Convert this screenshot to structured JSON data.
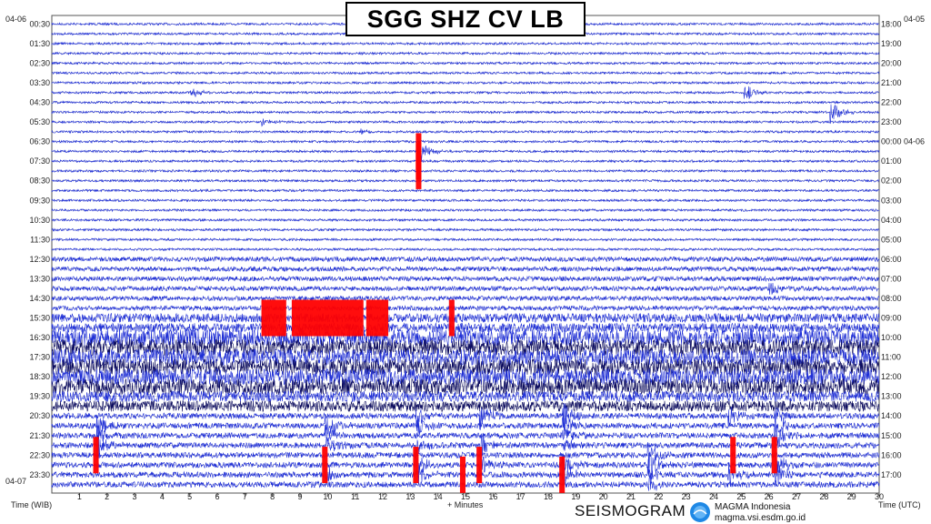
{
  "title": "SGG SHZ CV LB",
  "left_top_date": "04-06",
  "left_bottom_date": "04-07",
  "right_top_date": "04-05",
  "footer": {
    "left_axis_label": "Time (WIB)",
    "right_axis_label": "Time (UTC)",
    "x_axis_label": "+ Minutes",
    "brand": "SEISMOGRAM",
    "org_name": "MAGMA Indonesia",
    "org_url": "magma.vsi.esdm.go.id"
  },
  "colors": {
    "trace_blue": "#1f2fd6",
    "trace_navy": "#0b0b5e",
    "clip_red": "#ff0000",
    "grid_gray": "#c8c8c8"
  },
  "chart_data": {
    "type": "helicorder",
    "x_range": [
      0,
      30
    ],
    "x_ticks": [
      "1",
      "2",
      "3",
      "4",
      "5",
      "6",
      "7",
      "8",
      "9",
      "10",
      "11",
      "12",
      "13",
      "14",
      "15",
      "16",
      "17",
      "18",
      "19",
      "20",
      "21",
      "22",
      "23",
      "24",
      "25",
      "26",
      "27",
      "28",
      "29",
      "30"
    ],
    "left_time_labels": [
      "00:30",
      "01:30",
      "02:30",
      "03:30",
      "04:30",
      "05:30",
      "06:30",
      "07:30",
      "08:30",
      "09:30",
      "10:30",
      "11:30",
      "12:30",
      "13:30",
      "14:30",
      "15:30",
      "16:30",
      "17:30",
      "18:30",
      "19:30",
      "20:30",
      "21:30",
      "22:30",
      "23:30"
    ],
    "right_time_labels": [
      "18:00",
      "19:00",
      "20:00",
      "21:00",
      "22:00",
      "23:00",
      "00:00 04-06",
      "01:00",
      "02:00",
      "03:00",
      "04:00",
      "05:00",
      "06:00",
      "07:00",
      "08:00",
      "09:00",
      "10:00",
      "11:00",
      "12:00",
      "13:00",
      "14:00",
      "15:00",
      "16:00",
      "17:00"
    ],
    "lines_per_hour": 2,
    "line_count": 48
  }
}
